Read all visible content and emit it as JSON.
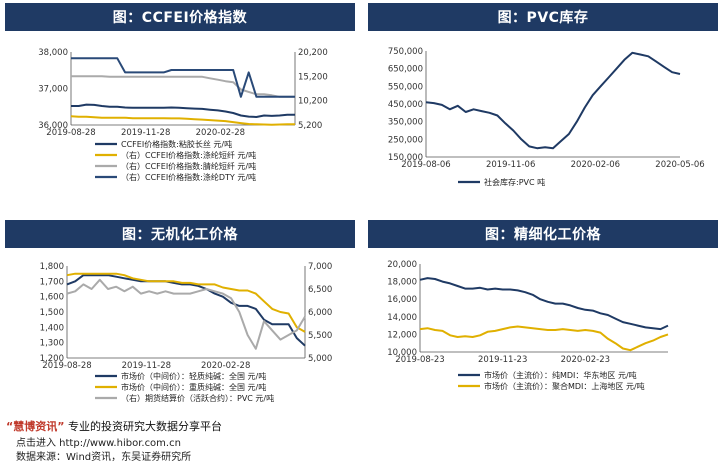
{
  "panels": [
    {
      "title": "图：CCFEI价格指数"
    },
    {
      "title": "图：PVC库存"
    },
    {
      "title": "图：无机化工价格"
    },
    {
      "title": "图：精细化工价格"
    }
  ],
  "footer": {
    "brand": "“慧博资讯”",
    "slogan": "专业的投资研究大数据分享平台",
    "line2": "点击进入 http://www.hibor.com.cn",
    "source": "数据来源：Wind资讯，东吴证券研究所"
  },
  "chart_data": [
    {
      "type": "line",
      "x_ticks": [
        "2019-08-28",
        "2019-11-28",
        "2020-02-28"
      ],
      "yleft": [
        36000,
        37000,
        38000
      ],
      "yright": [
        5200,
        10200,
        15200,
        20200
      ],
      "ylim_left": [
        36000,
        38000
      ],
      "ylim_right": [
        5200,
        20200
      ],
      "series": [
        {
          "name": "CCFEI价格指数:粘胶长丝 元/吨",
          "axis": "left",
          "color": "#1f3a64",
          "values": [
            36520,
            36520,
            36560,
            36550,
            36520,
            36500,
            36500,
            36480,
            36470,
            36470,
            36470,
            36470,
            36470,
            36480,
            36470,
            36460,
            36450,
            36440,
            36420,
            36400,
            36370,
            36330,
            36260,
            36230,
            36220,
            36260,
            36250,
            36260,
            36280,
            36280
          ]
        },
        {
          "name": "（右）CCFEI价格指数:涤纶短纤 元/吨",
          "axis": "right",
          "color": "#e0b000",
          "values": [
            7000,
            6900,
            6900,
            6800,
            6700,
            6700,
            6700,
            6700,
            6600,
            6600,
            6600,
            6600,
            6600,
            6550,
            6550,
            6500,
            6400,
            6300,
            6200,
            6100,
            6000,
            5800,
            5600,
            5400,
            5350,
            5300,
            5250,
            5300,
            5350,
            5350
          ]
        },
        {
          "name": "（右）CCFEI价格指数:腈纶短纤 元/吨",
          "axis": "right",
          "color": "#aaaaaa",
          "values": [
            15200,
            15200,
            15200,
            15200,
            15200,
            15100,
            15100,
            15100,
            15100,
            15100,
            15100,
            15100,
            15100,
            15100,
            15100,
            15100,
            15100,
            15100,
            14800,
            14500,
            14200,
            14000,
            12500,
            12000,
            11500,
            11500,
            11300,
            11000,
            11000,
            11000
          ]
        },
        {
          "name": "（右）CCFEI价格指数:涤纶DTY 元/吨",
          "axis": "right",
          "color": "#2a4a78",
          "values": [
            18900,
            18900,
            18900,
            18900,
            18900,
            18900,
            18900,
            16000,
            16000,
            16000,
            16000,
            16000,
            16000,
            16500,
            16500,
            16500,
            16500,
            16500,
            16500,
            16500,
            16500,
            16500,
            11000,
            16000,
            11000,
            11000,
            11000,
            11000,
            11000,
            11000
          ]
        }
      ]
    },
    {
      "type": "line",
      "x_ticks": [
        "2019-08-06",
        "2019-11-06",
        "2020-02-06",
        "2020-05-06"
      ],
      "ylim": [
        150000,
        750000
      ],
      "yticks": [
        150000,
        250000,
        350000,
        450000,
        550000,
        650000,
        750000
      ],
      "series": [
        {
          "name": "社会库存:PVC 吨",
          "color": "#1f3a64",
          "values": [
            460000,
            455000,
            445000,
            420000,
            440000,
            405000,
            420000,
            410000,
            400000,
            385000,
            340000,
            300000,
            250000,
            210000,
            200000,
            205000,
            200000,
            240000,
            280000,
            350000,
            430000,
            500000,
            550000,
            600000,
            650000,
            700000,
            740000,
            730000,
            720000,
            690000,
            660000,
            630000,
            620000
          ]
        }
      ]
    },
    {
      "type": "line",
      "x_ticks": [
        "2019-08-28",
        "2019-11-28",
        "2020-02-28"
      ],
      "yleft": [
        1200,
        1300,
        1400,
        1500,
        1600,
        1700,
        1800
      ],
      "yright": [
        5000,
        5500,
        6000,
        6500,
        7000
      ],
      "ylim_left": [
        1200,
        1800
      ],
      "ylim_right": [
        5000,
        7000
      ],
      "series": [
        {
          "name": "市场价（中间价）：轻质纯碱：全国 元/吨",
          "axis": "left",
          "color": "#1f3a64",
          "values": [
            1680,
            1700,
            1740,
            1740,
            1740,
            1740,
            1730,
            1720,
            1710,
            1700,
            1700,
            1700,
            1700,
            1690,
            1680,
            1680,
            1670,
            1650,
            1620,
            1600,
            1560,
            1540,
            1540,
            1520,
            1450,
            1420,
            1420,
            1420,
            1330,
            1280
          ]
        },
        {
          "name": "市场价（中间价）：重质纯碱：全国 元/吨",
          "axis": "left",
          "color": "#e0b000",
          "values": [
            1740,
            1750,
            1750,
            1750,
            1750,
            1750,
            1750,
            1740,
            1720,
            1710,
            1700,
            1700,
            1700,
            1700,
            1690,
            1690,
            1680,
            1680,
            1680,
            1660,
            1650,
            1640,
            1640,
            1620,
            1570,
            1520,
            1500,
            1490,
            1400,
            1370
          ]
        },
        {
          "name": "（右）期货结算价（活跃合约）：PVC 元/吨",
          "axis": "right",
          "color": "#aaaaaa",
          "values": [
            6400,
            6450,
            6600,
            6500,
            6700,
            6500,
            6550,
            6450,
            6550,
            6400,
            6450,
            6400,
            6450,
            6400,
            6400,
            6400,
            6450,
            6500,
            6450,
            6400,
            6300,
            6000,
            5500,
            5200,
            5800,
            5600,
            5400,
            5500,
            5600,
            5900
          ]
        }
      ]
    },
    {
      "type": "line",
      "x_ticks": [
        "2019-08-23",
        "2019-11-23",
        "2020-02-23"
      ],
      "ylim": [
        10000,
        20000
      ],
      "yticks": [
        10000,
        12000,
        14000,
        16000,
        18000,
        20000
      ],
      "series": [
        {
          "name": "市场价（主流价）：纯MDI：华东地区 元/吨",
          "color": "#1f3a64",
          "values": [
            18200,
            18400,
            18300,
            18000,
            17800,
            17500,
            17200,
            17200,
            17300,
            17100,
            17200,
            17100,
            17100,
            17000,
            16800,
            16500,
            16000,
            15700,
            15500,
            15500,
            15300,
            15000,
            14800,
            14700,
            14400,
            14200,
            13800,
            13400,
            13200,
            13000,
            12800,
            12700,
            12600,
            13000
          ]
        },
        {
          "name": "市场价（主流价）：聚合MDI：上海地区 元/吨",
          "color": "#e0b000",
          "values": [
            12600,
            12700,
            12500,
            12400,
            11900,
            11700,
            11800,
            11700,
            11900,
            12300,
            12400,
            12600,
            12800,
            12900,
            12800,
            12700,
            12600,
            12500,
            12500,
            12600,
            12500,
            12400,
            12500,
            12400,
            12200,
            11500,
            11000,
            10400,
            10200,
            10600,
            11000,
            11300,
            11700,
            12000
          ]
        }
      ]
    }
  ]
}
